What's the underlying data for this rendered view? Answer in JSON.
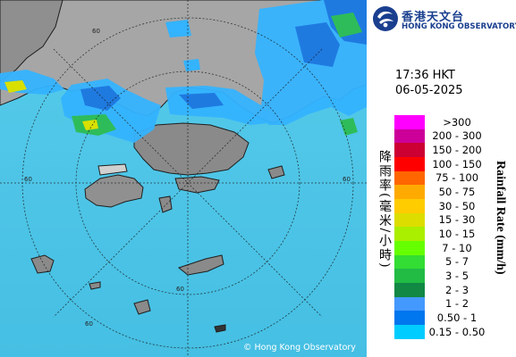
{
  "header": {
    "org_name_zh": "香港天文台",
    "org_name_en": "HONG KONG OBSERVATORY",
    "time": "17:36 HKT",
    "date": "06-05-2025"
  },
  "credit": "© Hong Kong Observatory",
  "legend": {
    "title_zh": "降雨率(毫米/小時)",
    "title_en": "Rainfall Rate (mm/h)",
    "items": [
      {
        "label": ">300",
        "color": "#ff00ff"
      },
      {
        "label": "200 - 300",
        "color": "#cc0099"
      },
      {
        "label": "150 - 200",
        "color": "#cc0033"
      },
      {
        "label": "100 - 150",
        "color": "#ff0000"
      },
      {
        "label": "75 - 100",
        "color": "#ff6600"
      },
      {
        "label": "50 - 75",
        "color": "#ffaa00"
      },
      {
        "label": "30 - 50",
        "color": "#ffcc00"
      },
      {
        "label": "15 - 30",
        "color": "#dddd00"
      },
      {
        "label": "10 - 15",
        "color": "#aaee00"
      },
      {
        "label": "7 - 10",
        "color": "#66ff00"
      },
      {
        "label": "5 - 7",
        "color": "#33dd33"
      },
      {
        "label": "3 - 5",
        "color": "#22bb44"
      },
      {
        "label": "2 - 3",
        "color": "#118844"
      },
      {
        "label": "1 - 2",
        "color": "#4499ff"
      },
      {
        "label": "0.50 - 1",
        "color": "#0077ee"
      },
      {
        "label": "0.15 - 0.50",
        "color": "#00ccff"
      }
    ]
  },
  "map": {
    "range_ring_labels": [
      "60",
      "60",
      "60",
      "60",
      "60"
    ],
    "colors": {
      "sea": "#4fc3e6",
      "land": "#9e9e9e",
      "coast": "#222222",
      "rain_light": "#34b3ff",
      "rain_mid": "#1f7ae0",
      "rain_green": "#2ebc5a",
      "rain_yellow": "#d8e000"
    }
  }
}
